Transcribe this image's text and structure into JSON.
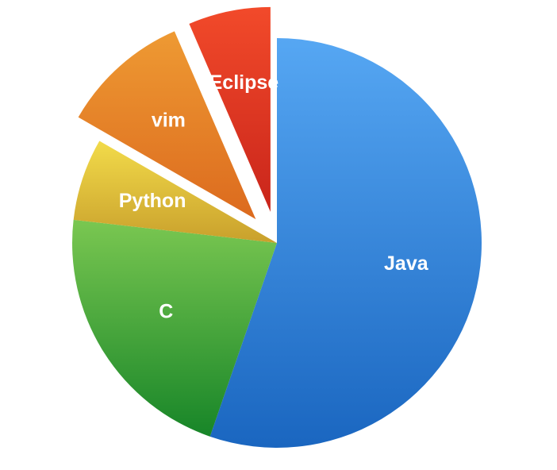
{
  "chart_data": {
    "type": "pie",
    "title": "",
    "legend": "none",
    "slices": [
      {
        "label": "Java",
        "value": 55.3,
        "exploded": false,
        "color_top": "#56A7F3",
        "color_bottom": "#1A66C0"
      },
      {
        "label": "C",
        "value": 21.5,
        "exploded": false,
        "color_top": "#7AC751",
        "color_bottom": "#178528"
      },
      {
        "label": "Python",
        "value": 6.5,
        "exploded": false,
        "color_top": "#F2DB4A",
        "color_bottom": "#C9A02C"
      },
      {
        "label": "vim",
        "value": 10.2,
        "exploded": true,
        "color_top": "#EE9A33",
        "color_bottom": "#DC6A1E"
      },
      {
        "label": "Eclipse",
        "value": 6.5,
        "exploded": true,
        "color_top": "#F24A2A",
        "color_bottom": "#C9251B"
      }
    ]
  }
}
